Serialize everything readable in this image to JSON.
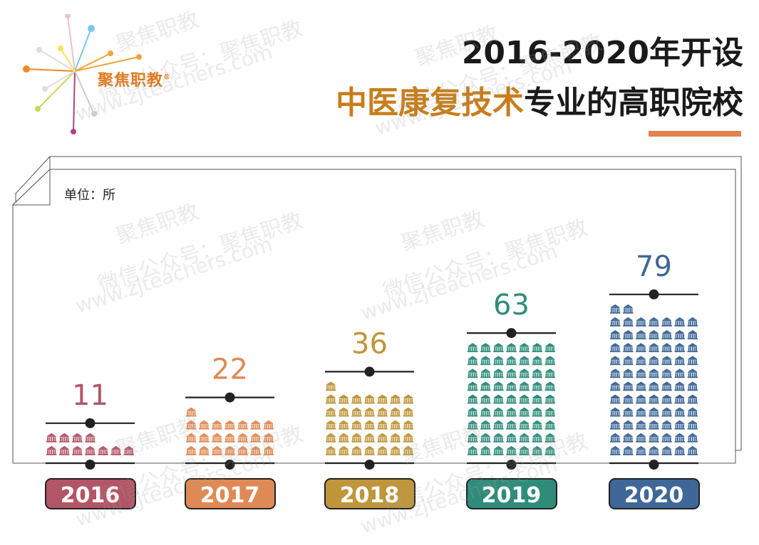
{
  "brand": {
    "name": "聚焦职教",
    "mark": "®"
  },
  "title": {
    "line1": "2016-2020年开设",
    "line2_highlight": "中医康复技术",
    "line2_rest": "专业的高职院校"
  },
  "unit_label": "单位：所",
  "colors": {
    "title_highlight": "#c87d1a",
    "accent_rule": "#e0834d",
    "years": [
      "#b25566",
      "#df8a55",
      "#bf963c",
      "#2f8c7a",
      "#3f6797"
    ]
  },
  "icon": "school-building-icon",
  "chart_data": {
    "type": "bar",
    "categories": [
      "2016",
      "2017",
      "2018",
      "2019",
      "2020"
    ],
    "values": [
      11,
      22,
      36,
      63,
      79
    ],
    "title": "2016-2020年开设中医康复技术专业的高职院校",
    "xlabel": "",
    "ylabel": "单位：所",
    "ylim": [
      0,
      80
    ],
    "grid": false,
    "legend": "none"
  },
  "watermarks": [
    {
      "line1": "聚焦职教",
      "line2": "微信公众号：聚焦职教",
      "line3": "www.zjteachers.com"
    }
  ]
}
